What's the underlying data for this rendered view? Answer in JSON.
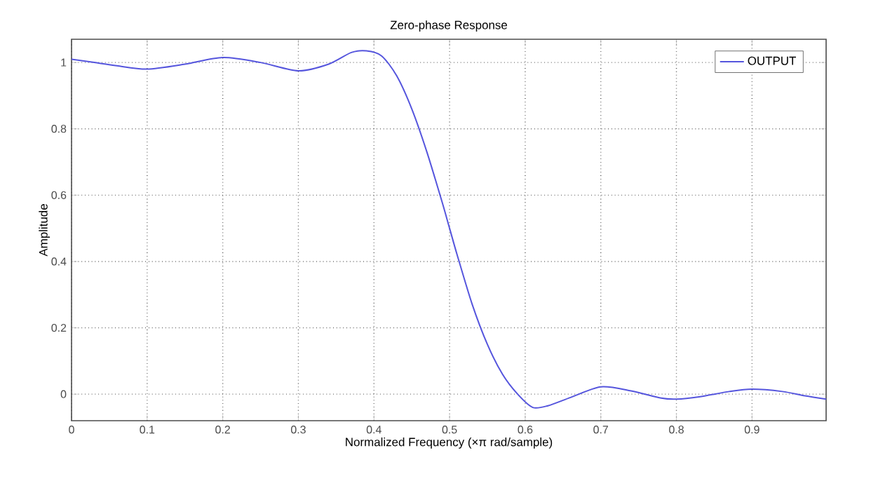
{
  "chart_data": {
    "type": "line",
    "title": "Zero-phase Response",
    "xlabel": "Normalized Frequency (×π rad/sample)",
    "ylabel": "Amplitude",
    "xlim": [
      0,
      0.998
    ],
    "ylim": [
      -0.08,
      1.07
    ],
    "xticks": [
      0,
      0.1,
      0.2,
      0.3,
      0.4,
      0.5,
      0.6,
      0.7,
      0.8,
      0.9
    ],
    "yticks": [
      0,
      0.2,
      0.4,
      0.6,
      0.8,
      1
    ],
    "grid": true,
    "legend": "top right",
    "line_style": "solid",
    "marker": "none",
    "series": [
      {
        "name": "OUTPUT",
        "color": "#5555dd",
        "x": [
          0,
          0.03,
          0.06,
          0.1,
          0.15,
          0.2,
          0.25,
          0.3,
          0.34,
          0.37,
          0.39,
          0.41,
          0.43,
          0.45,
          0.47,
          0.49,
          0.5,
          0.51,
          0.53,
          0.55,
          0.57,
          0.59,
          0.61,
          0.63,
          0.66,
          0.7,
          0.74,
          0.78,
          0.8,
          0.83,
          0.87,
          0.9,
          0.94,
          0.97,
          0.998
        ],
        "values": [
          1.01,
          1.0,
          0.99,
          0.98,
          0.995,
          1.015,
          1.0,
          0.975,
          0.995,
          1.03,
          1.035,
          1.02,
          0.96,
          0.86,
          0.73,
          0.58,
          0.5,
          0.42,
          0.27,
          0.15,
          0.06,
          0.0,
          -0.04,
          -0.035,
          -0.01,
          0.022,
          0.01,
          -0.012,
          -0.015,
          -0.008,
          0.008,
          0.015,
          0.008,
          -0.005,
          -0.015
        ]
      }
    ]
  }
}
